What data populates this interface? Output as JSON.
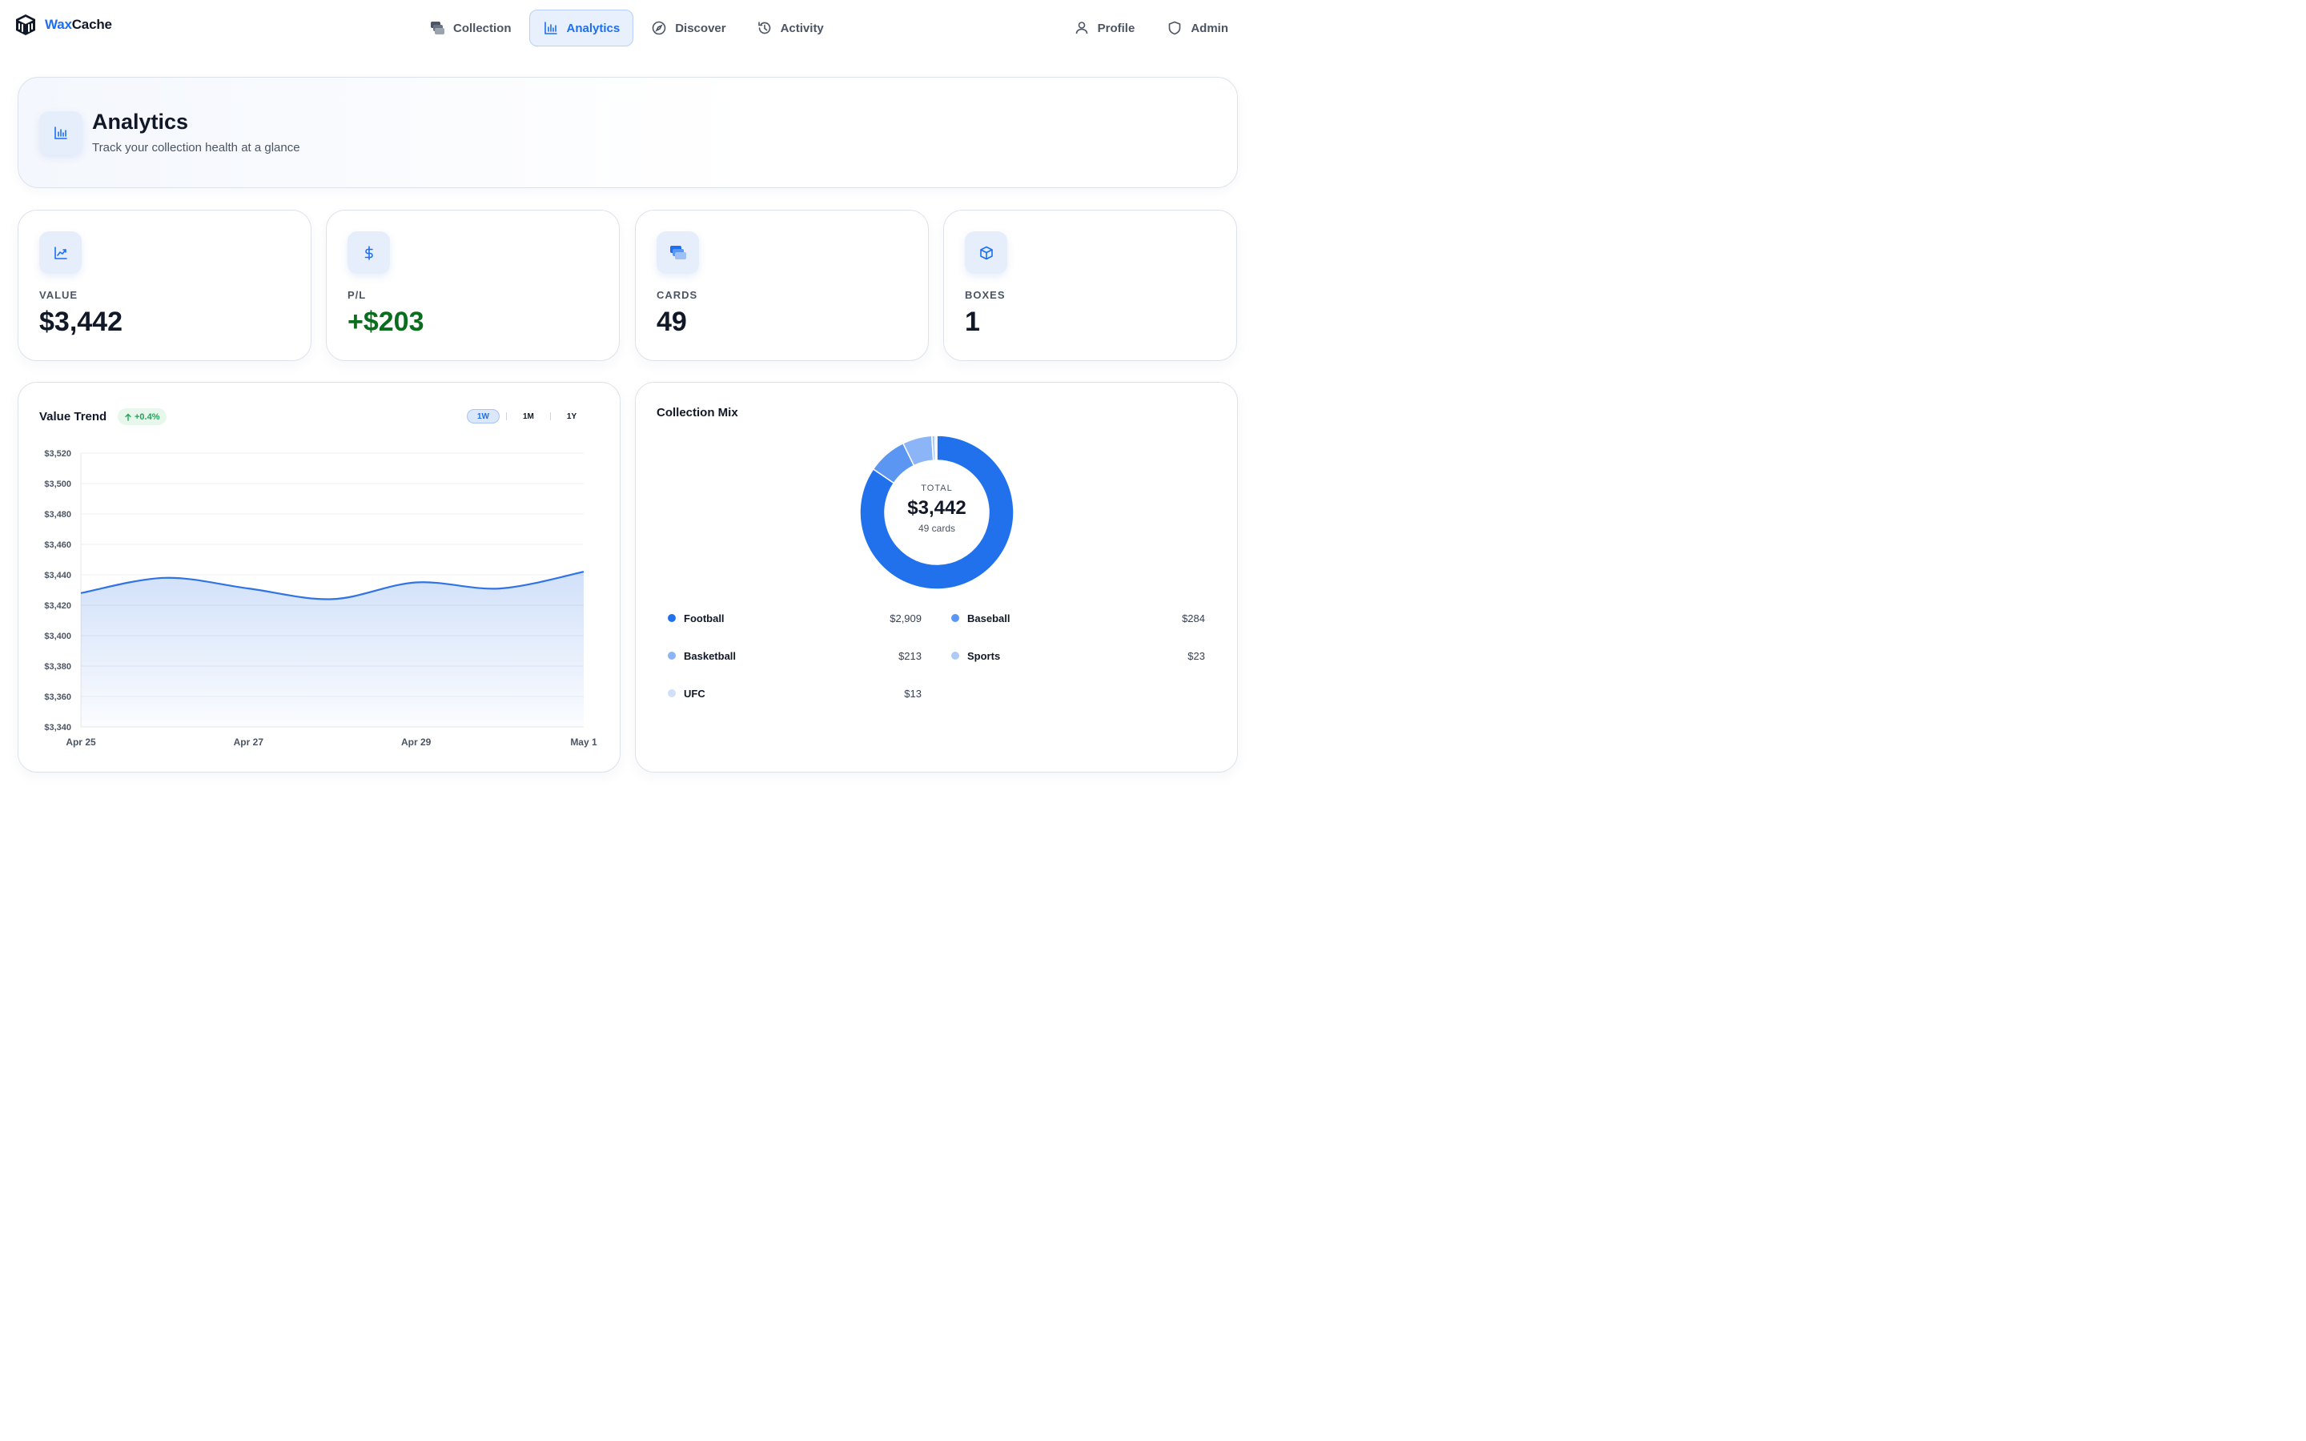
{
  "brand": {
    "name_part1": "Wax",
    "name_part2": "Cache"
  },
  "nav": {
    "center": [
      {
        "label": "Collection",
        "icon": "cards-stack-icon"
      },
      {
        "label": "Analytics",
        "icon": "bar-chart-icon",
        "active": true
      },
      {
        "label": "Discover",
        "icon": "compass-icon"
      },
      {
        "label": "Activity",
        "icon": "history-icon"
      }
    ],
    "right": [
      {
        "label": "Profile",
        "icon": "user-icon"
      },
      {
        "label": "Admin",
        "icon": "shield-icon"
      }
    ]
  },
  "hero": {
    "title": "Analytics",
    "subtitle": "Track your collection health at a glance"
  },
  "stats": [
    {
      "label": "VALUE",
      "value": "$3,442",
      "icon": "trend-chart-icon"
    },
    {
      "label": "P/L",
      "value": "+$203",
      "icon": "dollar-icon",
      "positive": true
    },
    {
      "label": "CARDS",
      "value": "49",
      "icon": "cards-stack-icon"
    },
    {
      "label": "BOXES",
      "value": "1",
      "icon": "box-icon"
    }
  ],
  "value_trend": {
    "title": "Value Trend",
    "change": "+0.4%",
    "ranges": [
      "1W",
      "1M",
      "1Y"
    ],
    "active_range": "1W",
    "accent_color": "#2f73e6"
  },
  "collection_mix": {
    "title": "Collection Mix",
    "total_label": "TOTAL",
    "total_value": "$3,442",
    "total_cards": "49 cards"
  },
  "chart_data": [
    {
      "type": "area",
      "title": "Value Trend",
      "x": [
        "Apr 25",
        "Apr 26",
        "Apr 27",
        "Apr 28",
        "Apr 29",
        "Apr 30",
        "May 1"
      ],
      "x_tick_labels": [
        "Apr 25",
        "Apr 27",
        "Apr 29",
        "May 1"
      ],
      "series": [
        {
          "values": [
            3428,
            3438,
            3431,
            3424,
            3435,
            3431,
            3442
          ]
        }
      ],
      "y_ticks": [
        "$3,340",
        "$3,360",
        "$3,380",
        "$3,400",
        "$3,420",
        "$3,440",
        "$3,460",
        "$3,480",
        "$3,500",
        "$3,520"
      ],
      "ylim": [
        3340,
        3520
      ],
      "grid": true
    },
    {
      "type": "pie",
      "title": "Collection Mix",
      "slices": [
        {
          "name": "Football",
          "value": 2909,
          "label": "$2,909",
          "color": "#2171ed"
        },
        {
          "name": "Baseball",
          "value": 284,
          "label": "$284",
          "color": "#5b96f2"
        },
        {
          "name": "Basketball",
          "value": 213,
          "label": "$213",
          "color": "#8bb5f6"
        },
        {
          "name": "Sports",
          "value": 23,
          "label": "$23",
          "color": "#aecbf8"
        },
        {
          "name": "UFC",
          "value": 13,
          "label": "$13",
          "color": "#d0e0fb"
        }
      ]
    }
  ]
}
